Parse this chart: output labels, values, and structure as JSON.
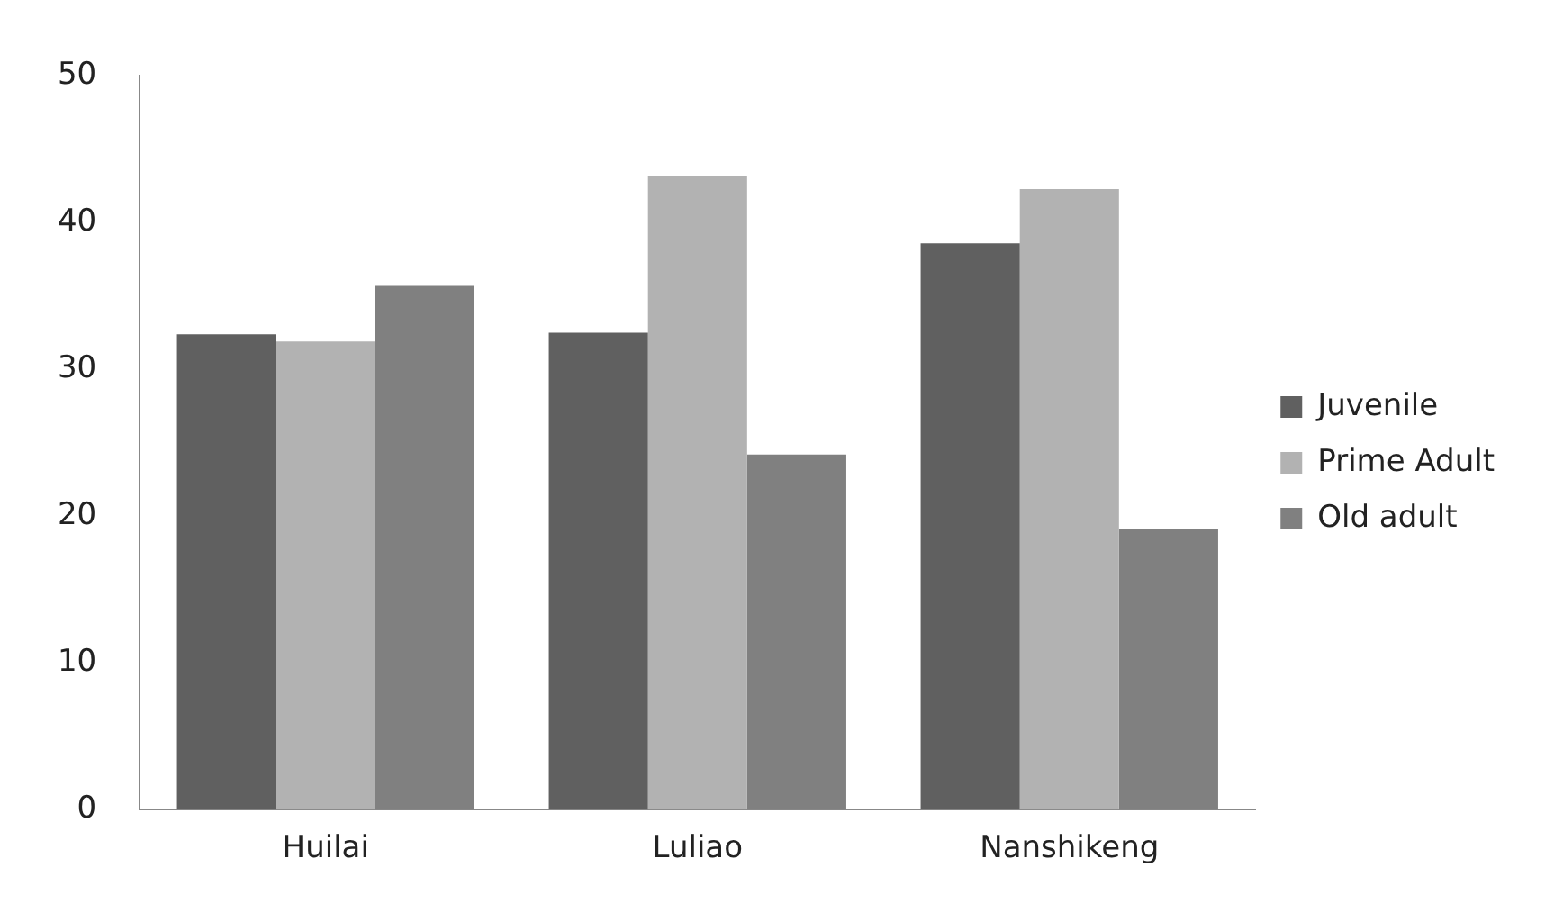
{
  "chart_data": {
    "type": "bar",
    "categories": [
      "Huilai",
      "Luliao",
      "Nanshikeng"
    ],
    "series": [
      {
        "name": "Juvenile",
        "color": "#606060",
        "values": [
          32.4,
          32.5,
          38.6
        ]
      },
      {
        "name": "Prime Adult",
        "color": "#b2b2b2",
        "values": [
          31.9,
          43.2,
          42.3
        ]
      },
      {
        "name": "Old adult",
        "color": "#808080",
        "values": [
          35.7,
          24.2,
          19.1
        ]
      }
    ],
    "ylim": [
      0,
      50
    ],
    "yticks": [
      0,
      10,
      20,
      30,
      40,
      50
    ],
    "grid": false,
    "legend": "right"
  }
}
